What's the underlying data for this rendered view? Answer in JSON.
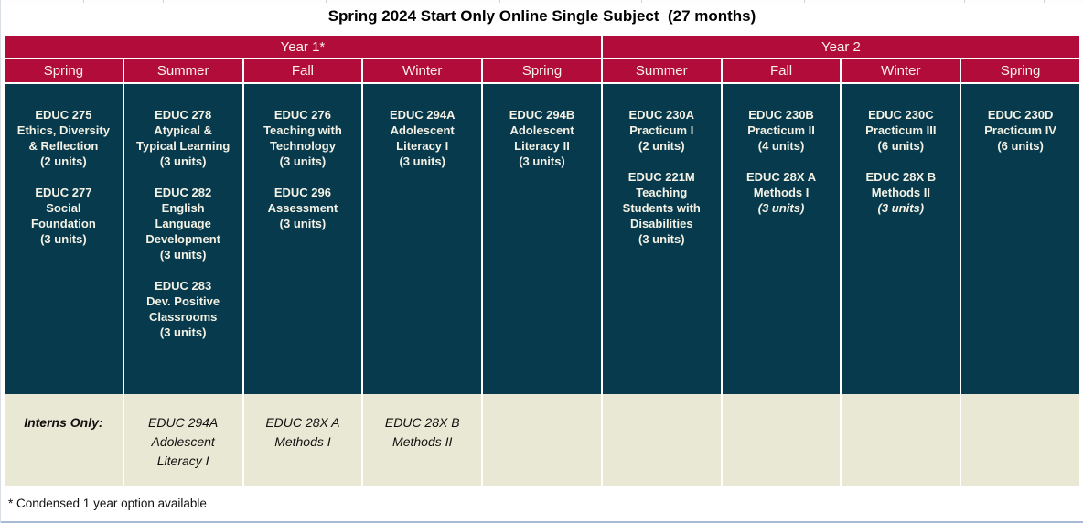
{
  "title": "Spring 2024 Start Only Online Single Subject  (27 months)",
  "footnote": "* Condensed 1 year option available",
  "colors": {
    "header_red": "#b20d3a",
    "body_teal": "#073a4c",
    "interns_beige": "#e9e8d4",
    "body_text": "#f4f1e5"
  },
  "header": {
    "years": [
      {
        "label": "Year 1*",
        "span": 5
      },
      {
        "label": "Year 2",
        "span": 4
      }
    ],
    "seasons": [
      "Spring",
      "Summer",
      "Fall",
      "Winter",
      "Spring",
      "Summer",
      "Fall",
      "Winter",
      "Spring"
    ]
  },
  "body": {
    "columns": [
      {
        "key": "year1-spring",
        "blocks": [
          {
            "lines": [
              "EDUC 275",
              "Ethics, Diversity",
              "& Reflection",
              "(2 units)"
            ],
            "italic_last": false
          },
          {
            "lines": [
              "EDUC 277",
              "Social",
              "Foundation",
              "(3 units)"
            ],
            "italic_last": false
          }
        ]
      },
      {
        "key": "year1-summer",
        "blocks": [
          {
            "lines": [
              "EDUC 278",
              "Atypical &",
              "Typical Learning",
              "(3 units)"
            ],
            "italic_last": false
          },
          {
            "lines": [
              "EDUC 282",
              "English",
              "Language",
              "Development",
              "(3 units)"
            ],
            "italic_last": false
          },
          {
            "lines": [
              "EDUC 283",
              "Dev. Positive",
              "Classrooms",
              "(3 units)"
            ],
            "italic_last": false
          }
        ]
      },
      {
        "key": "year1-fall",
        "blocks": [
          {
            "lines": [
              "EDUC 276",
              "Teaching with",
              "Technology",
              "(3 units)"
            ],
            "italic_last": false
          },
          {
            "lines": [
              "EDUC 296",
              "Assessment",
              "(3 units)"
            ],
            "italic_last": false
          }
        ]
      },
      {
        "key": "year1-winter",
        "blocks": [
          {
            "lines": [
              "EDUC 294A",
              "Adolescent",
              "Literacy I",
              "(3 units)"
            ],
            "italic_last": false
          }
        ]
      },
      {
        "key": "year1-spring-2",
        "blocks": [
          {
            "lines": [
              "EDUC 294B",
              "Adolescent",
              "Literacy II",
              "(3 units)"
            ],
            "italic_last": false
          }
        ]
      },
      {
        "key": "year2-summer",
        "blocks": [
          {
            "lines": [
              "EDUC 230A",
              "Practicum I",
              "(2 units)"
            ],
            "italic_last": false
          },
          {
            "lines": [
              "EDUC 221M",
              "Teaching",
              "Students with",
              "Disabilities",
              "(3 units)"
            ],
            "italic_last": false
          }
        ]
      },
      {
        "key": "year2-fall",
        "blocks": [
          {
            "lines": [
              "EDUC 230B",
              "Practicum II",
              "(4 units)"
            ],
            "italic_last": false
          },
          {
            "lines": [
              "EDUC 28X A",
              "Methods I",
              "(3 units)"
            ],
            "italic_last": true
          }
        ]
      },
      {
        "key": "year2-winter",
        "blocks": [
          {
            "lines": [
              "EDUC 230C",
              "Practicum III",
              "(6 units)"
            ],
            "italic_last": false
          },
          {
            "lines": [
              "EDUC 28X B",
              "Methods II",
              "(3 units)"
            ],
            "italic_last": true
          }
        ]
      },
      {
        "key": "year2-spring",
        "blocks": [
          {
            "lines": [
              "EDUC 230D",
              "Practicum IV",
              "(6 units)"
            ],
            "italic_last": false
          }
        ]
      }
    ]
  },
  "interns": {
    "cells": [
      {
        "key": "interns-label",
        "lines": [
          "Interns Only:"
        ],
        "is_label": true
      },
      {
        "key": "year1-summer",
        "lines": [
          "EDUC 294A",
          "Adolescent",
          "Literacy I"
        ],
        "is_label": false
      },
      {
        "key": "year1-fall",
        "lines": [
          "EDUC 28X A",
          "Methods I"
        ],
        "is_label": false
      },
      {
        "key": "year1-winter",
        "lines": [
          "EDUC 28X B",
          "Methods II"
        ],
        "is_label": false
      },
      {
        "key": "year1-spring-2",
        "lines": [],
        "is_label": false
      },
      {
        "key": "year2-summer",
        "lines": [],
        "is_label": false
      },
      {
        "key": "year2-fall",
        "lines": [],
        "is_label": false
      },
      {
        "key": "year2-winter",
        "lines": [],
        "is_label": false
      },
      {
        "key": "year2-spring",
        "lines": [],
        "is_label": false
      }
    ]
  }
}
